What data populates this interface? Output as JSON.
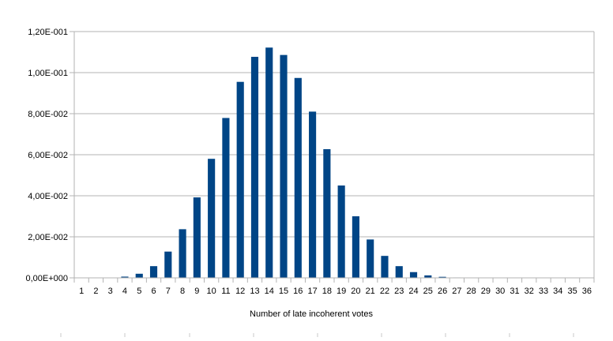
{
  "chart_data": {
    "type": "bar",
    "title": "",
    "xlabel": "Number of late incoherent votes",
    "ylabel": "",
    "ylim": [
      0,
      0.12
    ],
    "y_ticks": [
      "0,00E+000",
      "2,00E-002",
      "4,00E-002",
      "6,00E-002",
      "8,00E-002",
      "1,00E-001",
      "1,20E-001"
    ],
    "y_tick_values": [
      0,
      0.02,
      0.04,
      0.06,
      0.08,
      0.1,
      0.12
    ],
    "grid": "horizontal",
    "legend": "none",
    "bar_color": "#004586",
    "categories": [
      "1",
      "2",
      "3",
      "4",
      "5",
      "6",
      "7",
      "8",
      "9",
      "10",
      "11",
      "12",
      "13",
      "14",
      "15",
      "16",
      "17",
      "18",
      "19",
      "20",
      "21",
      "22",
      "23",
      "24",
      "25",
      "26",
      "27",
      "28",
      "29",
      "30",
      "31",
      "32",
      "33",
      "34",
      "35",
      "36"
    ],
    "values": [
      0.0,
      0.0,
      0.0001,
      0.0006,
      0.002,
      0.0057,
      0.0128,
      0.0237,
      0.0392,
      0.058,
      0.0779,
      0.0955,
      0.1077,
      0.1122,
      0.1086,
      0.0974,
      0.081,
      0.0627,
      0.045,
      0.03,
      0.0187,
      0.0107,
      0.0057,
      0.0028,
      0.0012,
      0.0005,
      0.0002,
      0.0001,
      0.0,
      0.0,
      0.0,
      0.0,
      0.0,
      0.0,
      0.0,
      0.0
    ]
  }
}
